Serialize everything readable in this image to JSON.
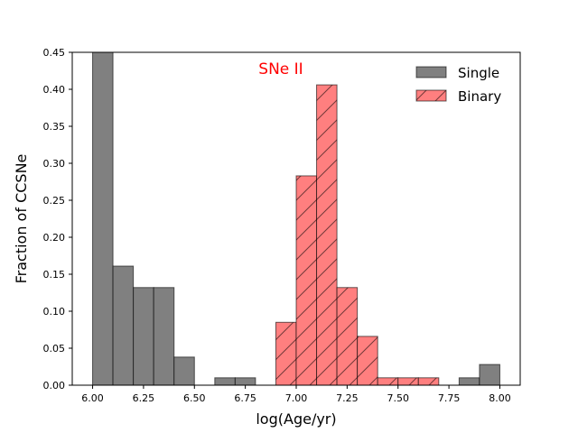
{
  "chart_data": {
    "type": "bar",
    "title": "",
    "annotation": "SNe II",
    "annotation_color": "#ff0000",
    "xlabel": "log(Age/yr)",
    "ylabel": "Fraction of CCSNe",
    "xlim": [
      5.9,
      8.1
    ],
    "ylim": [
      0,
      0.45
    ],
    "xticks": [
      "6.00",
      "6.25",
      "6.50",
      "6.75",
      "7.00",
      "7.25",
      "7.50",
      "7.75",
      "8.00"
    ],
    "yticks": [
      "0.00",
      "0.05",
      "0.10",
      "0.15",
      "0.20",
      "0.25",
      "0.30",
      "0.35",
      "0.40",
      "0.45"
    ],
    "bin_edges": [
      6.0,
      6.1,
      6.2,
      6.3,
      6.4,
      6.5,
      6.6,
      6.7,
      6.8,
      6.9,
      7.0,
      7.1,
      7.2,
      7.3,
      7.4,
      7.5,
      7.6,
      7.7,
      7.8,
      7.9,
      8.0
    ],
    "legend_position": "top-right",
    "series": [
      {
        "name": "Single",
        "color": "#808080",
        "hatch": "none",
        "values": [
          0.45,
          0.161,
          0.132,
          0.132,
          0.038,
          0.0,
          0.01,
          0.01,
          0.0,
          0.0,
          0.0,
          0.01,
          0.0,
          0.0,
          0.0,
          0.0,
          0.0,
          0.0,
          0.01,
          0.028
        ]
      },
      {
        "name": "Binary",
        "color": "#ff7f7f",
        "hatch": "diagonal",
        "values": [
          0.0,
          0.0,
          0.0,
          0.0,
          0.0,
          0.0,
          0.0,
          0.0,
          0.0,
          0.085,
          0.283,
          0.406,
          0.132,
          0.066,
          0.01,
          0.01,
          0.01,
          0.0,
          0.0,
          0.0
        ]
      }
    ]
  }
}
